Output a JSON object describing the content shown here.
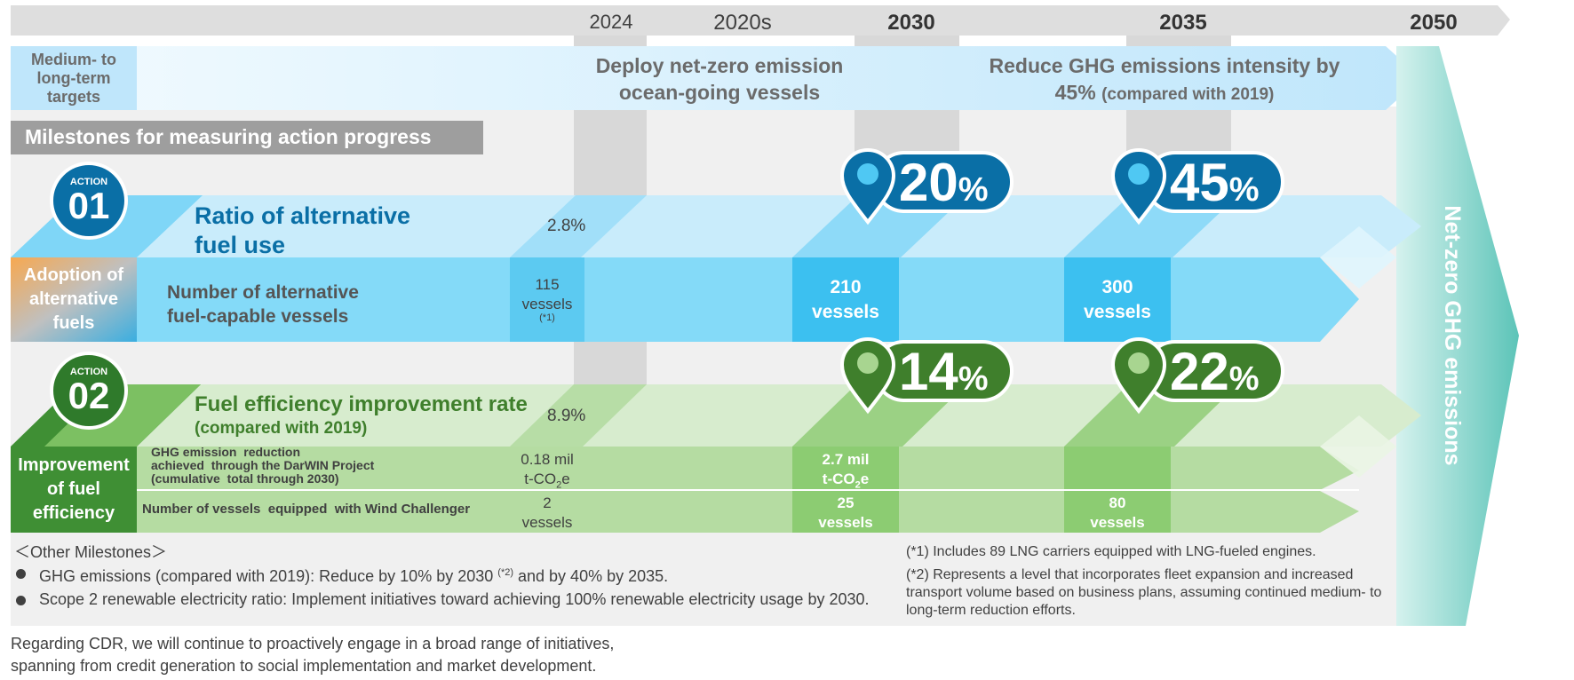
{
  "timeline": {
    "years": [
      "2024",
      "2020s",
      "2030",
      "2035",
      "2050"
    ]
  },
  "targets": {
    "label": "Medium- to long-term targets",
    "deploy": "Deploy net-zero emission ocean-going vessels",
    "reduce_line1": "Reduce GHG emissions intensity by",
    "reduce_pct": "45%",
    "reduce_note": "(compared with 2019)",
    "net_zero": "Net-zero GHG emissions"
  },
  "milestones_title": "Milestones for measuring action progress",
  "action01": {
    "badge_word": "ACTION",
    "badge_num": "01",
    "title_line1": "Ratio of alternative",
    "title_line2": "fuel use",
    "side_label": "Adoption of alternative fuels",
    "value_2024": "2.8%",
    "pin_2030": {
      "num": "20",
      "unit": "%"
    },
    "pin_2035": {
      "num": "45",
      "unit": "%"
    },
    "vessels_label_line1": "Number of alternative",
    "vessels_label_line2": "fuel-capable vessels",
    "vessels_2024": "115",
    "vessels_2024_unit": "vessels",
    "vessels_2024_note": "(*1)",
    "vessels_2030": "210",
    "vessels_2030_unit": "vessels",
    "vessels_2035": "300",
    "vessels_2035_unit": "vessels"
  },
  "action02": {
    "badge_word": "ACTION",
    "badge_num": "02",
    "title": "Fuel efficiency improvement rate",
    "subtitle": "(compared with 2019)",
    "side_label": "Improvement of fuel efficiency",
    "value_2024": "8.9%",
    "pin_2030": {
      "num": "14",
      "unit": "%"
    },
    "pin_2035": {
      "num": "22",
      "unit": "%"
    },
    "ghg_label_line1": "GHG emission  reduction",
    "ghg_label_line2": "achieved  through the DarWIN Project",
    "ghg_label_line3": "(cumulative  total through 2030)",
    "ghg_2024_line1": "0.18 mil",
    "ghg_2024_line2": "t-CO",
    "ghg_2030_line1": "2.7 mil",
    "ghg_2030_line2": "t-CO",
    "co2_sub": "2",
    "co2_suffix": "e",
    "wind_label": "Number of vessels  equipped  with Wind Challenger",
    "wind_2024": "2",
    "wind_2024_unit": "vessels",
    "wind_2030": "25",
    "wind_2030_unit": "vessels",
    "wind_2035": "80",
    "wind_2035_unit": "vessels"
  },
  "other": {
    "heading": "＜Other Milestones＞",
    "item1_a": "GHG emissions (compared with 2019): Reduce by 10% by 2030",
    "item1_note": "(*2)",
    "item1_b": " and by 40% by 2035.",
    "item2": "Scope 2 renewable electricity ratio: Implement  initiatives toward achieving 100% renewable electricity usage by 2030."
  },
  "footnotes": {
    "note1": "(*1) Includes 89 LNG carriers equipped with LNG-fueled engines.",
    "note2": "(*2) Represents a level that incorporates fleet expansion and  increased transport volume based on business plans, assuming continued medium- to long-term reduction efforts."
  },
  "cdr": {
    "line1": "Regarding CDR, we will continue to proactively engage in a broad range of initiatives,",
    "line2": "spanning from credit generation to social implementation and market development."
  },
  "colors": {
    "blue_dark": "#0a6fa6",
    "blue_light": "#7fd6f7",
    "blue_pale": "#c9ecfb",
    "green_dark": "#3f7f2c",
    "green_mid": "#8ccc72",
    "green_pale": "#d7ecce",
    "teal": "#6fcdc2",
    "grey": "#e0e0e0"
  }
}
